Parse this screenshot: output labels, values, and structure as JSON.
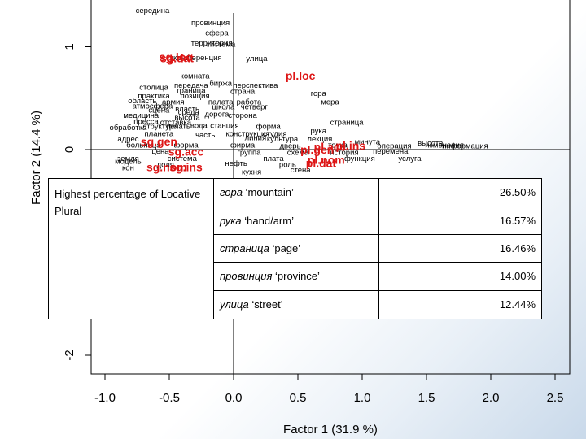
{
  "chart_data": {
    "type": "scatter",
    "xlabel": "Factor 1  (31.9 %)",
    "ylabel": "Factor 2  (14.4 %)",
    "xticks": [
      "-1.0",
      "-0.5",
      "0.0",
      "0.5",
      "1.0",
      "1.5",
      "2.0",
      "2.5"
    ],
    "yticks": [
      "-2",
      "-1",
      "0",
      "1"
    ],
    "xlim": [
      -1.1,
      2.6
    ],
    "ylim": [
      -2.1,
      1.35
    ],
    "word_labels": [
      {
        "text": "середина",
        "x": -0.63,
        "y": 1.33
      },
      {
        "text": "провинция",
        "x": -0.18,
        "y": 1.21
      },
      {
        "text": "сфера",
        "x": -0.13,
        "y": 1.11
      },
      {
        "text": "территория",
        "x": -0.17,
        "y": 1.01
      },
      {
        "text": "система",
        "x": -0.1,
        "y": 1.0
      },
      {
        "text": "конференция",
        "x": -0.28,
        "y": 0.87
      },
      {
        "text": "улица",
        "x": 0.18,
        "y": 0.86
      },
      {
        "text": "комната",
        "x": -0.3,
        "y": 0.69
      },
      {
        "text": "передача",
        "x": -0.33,
        "y": 0.6
      },
      {
        "text": "биржа",
        "x": -0.1,
        "y": 0.62
      },
      {
        "text": "перспектива",
        "x": 0.17,
        "y": 0.6
      },
      {
        "text": "столица",
        "x": -0.62,
        "y": 0.58
      },
      {
        "text": "граница",
        "x": -0.33,
        "y": 0.55
      },
      {
        "text": "страна",
        "x": 0.07,
        "y": 0.54
      },
      {
        "text": "практика",
        "x": -0.62,
        "y": 0.5
      },
      {
        "text": "позиция",
        "x": -0.3,
        "y": 0.5
      },
      {
        "text": "гора",
        "x": 0.66,
        "y": 0.52
      },
      {
        "text": "область",
        "x": -0.71,
        "y": 0.45
      },
      {
        "text": "армия",
        "x": -0.47,
        "y": 0.44
      },
      {
        "text": "палата",
        "x": -0.1,
        "y": 0.44
      },
      {
        "text": "работа",
        "x": 0.12,
        "y": 0.44
      },
      {
        "text": "мера",
        "x": 0.75,
        "y": 0.44
      },
      {
        "text": "атмосфера",
        "x": -0.63,
        "y": 0.4
      },
      {
        "text": "власть",
        "x": -0.36,
        "y": 0.37
      },
      {
        "text": "школа",
        "x": -0.08,
        "y": 0.39
      },
      {
        "text": "четверг",
        "x": 0.16,
        "y": 0.39
      },
      {
        "text": "сцена",
        "x": -0.58,
        "y": 0.36
      },
      {
        "text": "среда",
        "x": -0.35,
        "y": 0.34
      },
      {
        "text": "медицина",
        "x": -0.72,
        "y": 0.31
      },
      {
        "text": "высота",
        "x": -0.36,
        "y": 0.29
      },
      {
        "text": "дорога",
        "x": -0.13,
        "y": 0.32
      },
      {
        "text": "сторона",
        "x": 0.07,
        "y": 0.31
      },
      {
        "text": "пресса",
        "x": -0.68,
        "y": 0.25
      },
      {
        "text": "отставка",
        "x": -0.45,
        "y": 0.24
      },
      {
        "text": "страница",
        "x": 0.88,
        "y": 0.24
      },
      {
        "text": "обработка",
        "x": -0.82,
        "y": 0.19
      },
      {
        "text": "структура",
        "x": -0.57,
        "y": 0.2
      },
      {
        "text": "печать",
        "x": -0.43,
        "y": 0.2
      },
      {
        "text": "вода",
        "x": -0.27,
        "y": 0.21
      },
      {
        "text": "станция",
        "x": -0.07,
        "y": 0.21
      },
      {
        "text": "форма",
        "x": 0.27,
        "y": 0.2
      },
      {
        "text": "рука",
        "x": 0.66,
        "y": 0.16
      },
      {
        "text": "планета",
        "x": -0.58,
        "y": 0.13
      },
      {
        "text": "часть",
        "x": -0.22,
        "y": 0.12
      },
      {
        "text": "конструкция",
        "x": 0.11,
        "y": 0.13
      },
      {
        "text": "студия",
        "x": 0.32,
        "y": 0.13
      },
      {
        "text": "адрес",
        "x": -0.82,
        "y": 0.08
      },
      {
        "text": "линия",
        "x": 0.17,
        "y": 0.09
      },
      {
        "text": "культура",
        "x": 0.38,
        "y": 0.08
      },
      {
        "text": "лекция",
        "x": 0.67,
        "y": 0.08
      },
      {
        "text": "минута",
        "x": 1.04,
        "y": 0.05
      },
      {
        "text": "высота",
        "x": 1.53,
        "y": 0.04
      },
      {
        "text": "больница",
        "x": -0.7,
        "y": 0.02
      },
      {
        "text": "форма",
        "x": -0.37,
        "y": 0.02
      },
      {
        "text": "фирма",
        "x": 0.07,
        "y": 0.02
      },
      {
        "text": "дверь",
        "x": 0.44,
        "y": 0.01
      },
      {
        "text": "точка",
        "x": 0.81,
        "y": 0.02
      },
      {
        "text": "операция",
        "x": 1.25,
        "y": 0.01
      },
      {
        "text": "информация",
        "x": 1.8,
        "y": 0.01
      },
      {
        "text": "изменения",
        "x": 1.64,
        "y": 0.02
      },
      {
        "text": "цена",
        "x": -0.57,
        "y": -0.04
      },
      {
        "text": "группа",
        "x": 0.12,
        "y": -0.05
      },
      {
        "text": "схема",
        "x": 0.5,
        "y": -0.05
      },
      {
        "text": "история",
        "x": 0.86,
        "y": -0.05
      },
      {
        "text": "перемена",
        "x": 1.22,
        "y": -0.04
      },
      {
        "text": "земля",
        "x": -0.82,
        "y": -0.11
      },
      {
        "text": "система",
        "x": -0.4,
        "y": -0.11
      },
      {
        "text": "плата",
        "x": 0.31,
        "y": -0.11
      },
      {
        "text": "функция",
        "x": 0.98,
        "y": -0.11
      },
      {
        "text": "услуга",
        "x": 1.37,
        "y": -0.11
      },
      {
        "text": "модель",
        "x": -0.82,
        "y": -0.14
      },
      {
        "text": "доля",
        "x": -0.53,
        "y": -0.17
      },
      {
        "text": "нефть",
        "x": 0.02,
        "y": -0.16
      },
      {
        "text": "роль",
        "x": 0.42,
        "y": -0.17
      },
      {
        "text": "кон",
        "x": -0.82,
        "y": -0.2
      },
      {
        "text": "кухня",
        "x": 0.14,
        "y": -0.24
      },
      {
        "text": "стена",
        "x": 0.52,
        "y": -0.22
      }
    ],
    "category_labels": [
      {
        "text": "sg.dat",
        "x": -0.44,
        "y": 0.85
      },
      {
        "text": "sg.loc",
        "x": -0.45,
        "y": 0.86
      },
      {
        "text": "pl.loc",
        "x": 0.52,
        "y": 0.68
      },
      {
        "text": "sg.gen",
        "x": -0.58,
        "y": 0.04
      },
      {
        "text": "sg.acc",
        "x": -0.37,
        "y": -0.06
      },
      {
        "text": "sg.nom",
        "x": -0.52,
        "y": -0.21
      },
      {
        "text": "sg.ins",
        "x": -0.37,
        "y": -0.21
      },
      {
        "text": "pl.gen",
        "x": 0.65,
        "y": -0.04
      },
      {
        "text": "pl.acc",
        "x": 0.75,
        "y": -0.01
      },
      {
        "text": "pl.ins",
        "x": 0.91,
        "y": 0.0
      },
      {
        "text": "pl.nom",
        "x": 0.72,
        "y": -0.14
      },
      {
        "text": "pl.dat",
        "x": 0.68,
        "y": -0.17
      }
    ]
  },
  "table": {
    "header": "Highest percentage of Locative Plural",
    "rows": [
      {
        "word": "гора",
        "gloss": " ‘mountain’",
        "pct": "26.50%"
      },
      {
        "word": "рука",
        "gloss": " ‘hand/arm’",
        "pct": "16.57%"
      },
      {
        "word": "страница",
        "gloss": " ‘page’",
        "pct": "16.46%"
      },
      {
        "word": "провинция",
        "gloss": " ‘province’",
        "pct": "14.00%"
      },
      {
        "word": "улица",
        "gloss": " ‘street’",
        "pct": "12.44%"
      }
    ]
  }
}
